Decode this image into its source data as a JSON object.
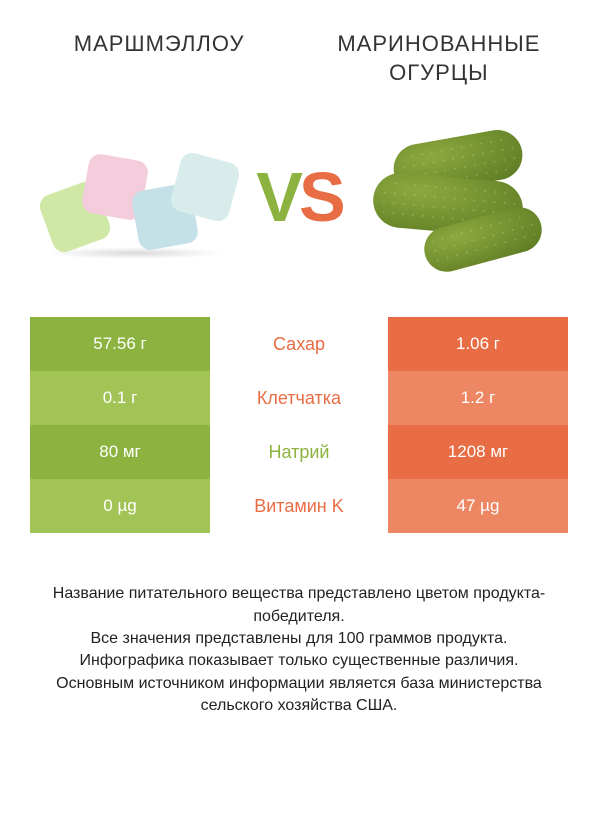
{
  "titles": {
    "left": "МАРШМЭЛЛОУ",
    "right": "МАРИНОВАННЫЕ ОГУРЦЫ"
  },
  "vs": {
    "v": "V",
    "s": "S"
  },
  "colors": {
    "green_dark": "#8cb23f",
    "green_light": "#a2c356",
    "orange_dark": "#e86c44",
    "orange_light": "#ec8663"
  },
  "rows": [
    {
      "left": "57.56 г",
      "label": "Сахар",
      "right": "1.06 г",
      "winner": "orange"
    },
    {
      "left": "0.1 г",
      "label": "Клетчатка",
      "right": "1.2 г",
      "winner": "orange"
    },
    {
      "left": "80 мг",
      "label": "Натрий",
      "right": "1208 мг",
      "winner": "green"
    },
    {
      "left": "0 µg",
      "label": "Витамин K",
      "right": "47 µg",
      "winner": "orange"
    }
  ],
  "footer": [
    "Название питательного вещества представлено цветом продукта-победителя.",
    "Все значения представлены для 100 граммов продукта.",
    "Инфографика показывает только существенные различия.",
    "Основным источником информации является база министерства сельского хозяйства США."
  ]
}
